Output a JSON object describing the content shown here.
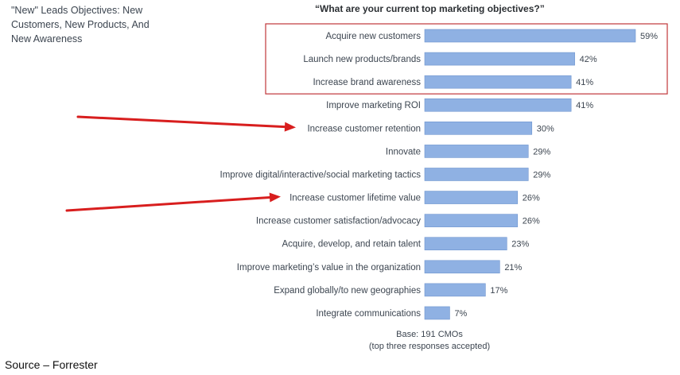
{
  "figure": {
    "title_lines": [
      "\"New\" Leads Objectives: New",
      "Customers, New Products, And",
      "New Awareness"
    ],
    "question": "“What are your current top marketing objectives?”",
    "base_lines": [
      "Base: 191 CMOs",
      "(top three responses accepted)"
    ],
    "source": "Source – Forrester"
  },
  "chart_data": {
    "type": "bar",
    "orientation": "horizontal",
    "title": "“What are your current top marketing objectives?”",
    "categories": [
      "Acquire new customers",
      "Launch new products/brands",
      "Increase brand awareness",
      "Improve marketing ROI",
      "Increase customer retention",
      "Innovate",
      "Improve digital/interactive/social marketing tactics",
      "Increase customer lifetime value",
      "Increase customer satisfaction/advocacy",
      "Acquire, develop, and retain talent",
      "Improve marketing’s value in the organization",
      "Expand globally/to new geographies",
      "Integrate communications"
    ],
    "values": [
      59,
      42,
      41,
      41,
      30,
      29,
      29,
      26,
      26,
      23,
      21,
      17,
      7
    ],
    "value_labels": [
      "59%",
      "42%",
      "41%",
      "41%",
      "30%",
      "29%",
      "29%",
      "26%",
      "26%",
      "23%",
      "21%",
      "17%",
      "7%"
    ],
    "unit": "%",
    "xlim": [
      0,
      100
    ],
    "grid": false,
    "legend": "none",
    "highlighted_categories": [
      "Acquire new customers",
      "Launch new products/brands",
      "Increase brand awareness"
    ],
    "arrow_targets": [
      "Increase customer retention",
      "Increase customer lifetime value"
    ]
  },
  "colors": {
    "bar": "#8fb1e3",
    "bar_edge": "#6f95cf",
    "highlight_box": "#c0373a",
    "arrow": "#d81e1e",
    "text": "#3c4550"
  }
}
